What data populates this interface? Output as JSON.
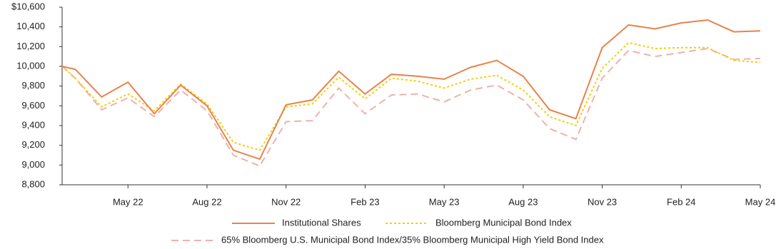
{
  "chart_data": {
    "type": "line",
    "categories": [
      null,
      null,
      null,
      "May 22",
      null,
      null,
      "Aug 22",
      null,
      null,
      "Nov 22",
      null,
      null,
      "Feb 23",
      null,
      null,
      "May 23",
      null,
      null,
      "Aug 23",
      null,
      null,
      "Nov 23",
      null,
      null,
      "Feb 24",
      null,
      null,
      "May 24"
    ],
    "series": [
      {
        "name": "Institutional Shares",
        "color": "#e8834a",
        "dash": "solid",
        "values": [
          10000,
          9970,
          9690,
          9840,
          9520,
          9810,
          9600,
          9150,
          9060,
          9610,
          9660,
          9950,
          9720,
          9920,
          9900,
          9870,
          9990,
          10060,
          9900,
          9560,
          9470,
          10190,
          10420,
          10380,
          10440,
          10470,
          10350,
          10360
        ]
      },
      {
        "name": "Bloomberg Municipal Bond Index",
        "color": "#f5d000",
        "dash": "dotted",
        "values": [
          10000,
          9880,
          9590,
          9720,
          9550,
          9820,
          9620,
          9230,
          9150,
          9590,
          9620,
          9890,
          9670,
          9880,
          9850,
          9780,
          9870,
          9910,
          9760,
          9490,
          9400,
          9980,
          10240,
          10180,
          10190,
          10190,
          10060,
          10040
        ]
      },
      {
        "name": "65% Bloomberg U.S. Municipal Bond Index/35% Bloomberg Municipal High Yield Bond Index",
        "color": "#f0b0ae",
        "dash": "dashed",
        "values": [
          10000,
          9880,
          9560,
          9680,
          9490,
          9760,
          9550,
          9100,
          8990,
          9440,
          9450,
          9780,
          9520,
          9710,
          9720,
          9640,
          9760,
          9810,
          9660,
          9370,
          9260,
          9880,
          10160,
          10100,
          10140,
          10180,
          10070,
          10080
        ]
      }
    ],
    "ylim": [
      8800,
      10600
    ],
    "yticks": [
      {
        "value": 8800,
        "label": "8,800"
      },
      {
        "value": 9000,
        "label": "9,000"
      },
      {
        "value": 9200,
        "label": "9,200"
      },
      {
        "value": 9400,
        "label": "9,400"
      },
      {
        "value": 9600,
        "label": "9,600"
      },
      {
        "value": 9800,
        "label": "9,800"
      },
      {
        "value": 10000,
        "label": "10,000"
      },
      {
        "value": 10200,
        "label": "10,200"
      },
      {
        "value": 10400,
        "label": "10,400"
      },
      {
        "value": 10600,
        "label": "$10,600"
      }
    ],
    "grid": false,
    "legend": "bottom"
  }
}
